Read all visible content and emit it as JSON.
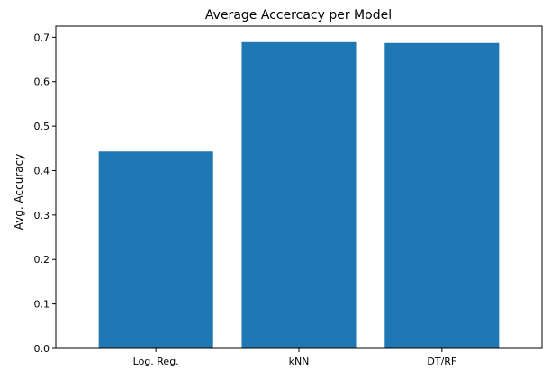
{
  "chart_data": {
    "type": "bar",
    "title": "Average Accercacy per Model",
    "xlabel": "",
    "ylabel": "Avg. Accuracy",
    "categories": [
      "Log. Reg.",
      "kNN",
      "DT/RF"
    ],
    "values": [
      0.443,
      0.689,
      0.687
    ],
    "ylim": [
      0,
      0.725
    ],
    "yticks": [
      0.0,
      0.1,
      0.2,
      0.3,
      0.4,
      0.5,
      0.6,
      0.7
    ],
    "ytick_labels": [
      "0.0",
      "0.1",
      "0.2",
      "0.3",
      "0.4",
      "0.5",
      "0.6",
      "0.7"
    ],
    "bar_color": "#1f77b4",
    "grid": false,
    "legend": "none"
  }
}
